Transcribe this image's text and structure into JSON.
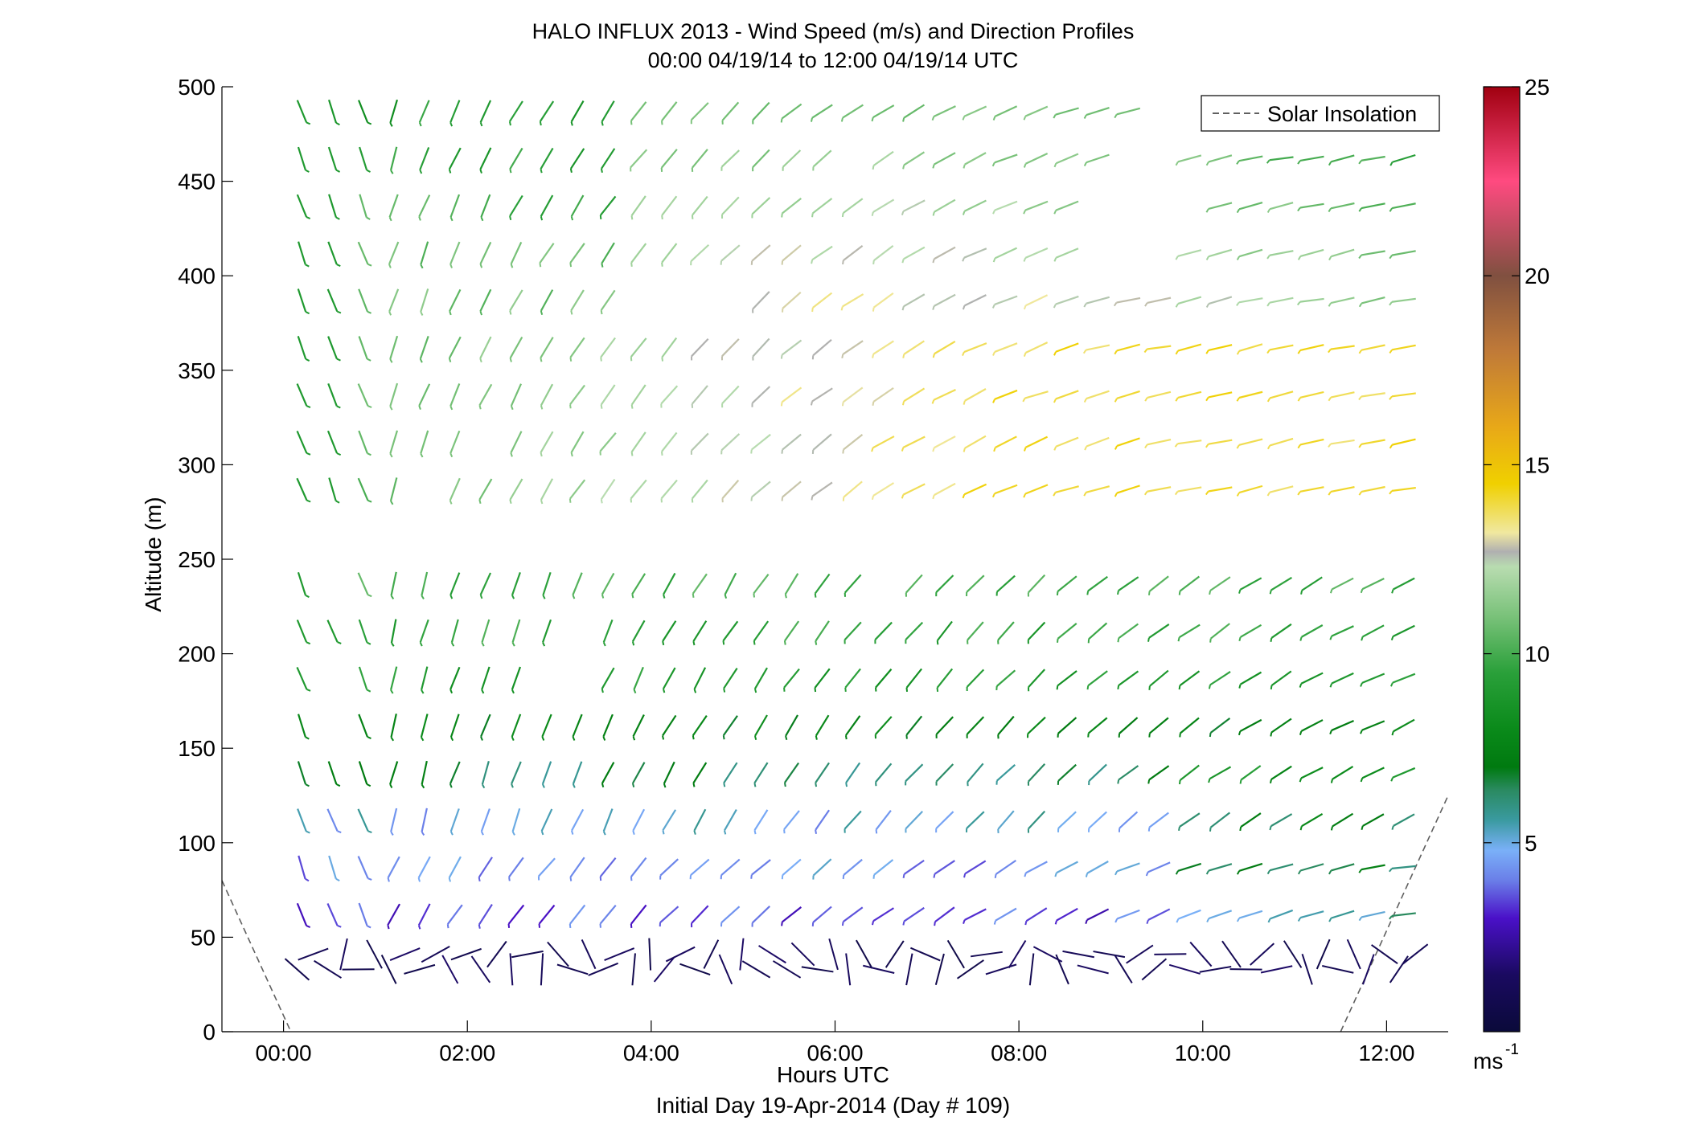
{
  "chart_data": {
    "type": "wind_barb_profile",
    "title": "HALO INFLUX 2013 - Wind Speed (m/s) and Direction Profiles",
    "subtitle": "00:00 04/19/14 to 12:00 04/19/14  UTC",
    "xlabel": "Hours UTC",
    "xlabel2": "Initial Day 19-Apr-2014 (Day # 109)",
    "ylabel": "Altitude (m)",
    "xlim_hours": [
      -0.67,
      12.67
    ],
    "ylim": [
      0,
      500
    ],
    "xticks": [
      {
        "hour": 0,
        "label": "00:00"
      },
      {
        "hour": 2,
        "label": "02:00"
      },
      {
        "hour": 4,
        "label": "04:00"
      },
      {
        "hour": 6,
        "label": "06:00"
      },
      {
        "hour": 8,
        "label": "08:00"
      },
      {
        "hour": 10,
        "label": "10:00"
      },
      {
        "hour": 12,
        "label": "12:00"
      }
    ],
    "yticks": [
      0,
      50,
      100,
      150,
      200,
      250,
      300,
      350,
      400,
      450,
      500
    ],
    "colorbar": {
      "range": [
        0,
        25
      ],
      "ticks": [
        5,
        10,
        15,
        20,
        25
      ],
      "unit_label": "ms",
      "unit_exponent": "-1",
      "stops": [
        {
          "v": 0,
          "c": "#0a0a3a"
        },
        {
          "v": 1.5,
          "c": "#1a0a60"
        },
        {
          "v": 3,
          "c": "#4a10c8"
        },
        {
          "v": 4,
          "c": "#6a7ee8"
        },
        {
          "v": 4.8,
          "c": "#7ab0f8"
        },
        {
          "v": 5.6,
          "c": "#3a9aa0"
        },
        {
          "v": 6.4,
          "c": "#2a8a60"
        },
        {
          "v": 7,
          "c": "#007a10"
        },
        {
          "v": 8,
          "c": "#0a8a1a"
        },
        {
          "v": 9.5,
          "c": "#2aa03a"
        },
        {
          "v": 11,
          "c": "#7ac27a"
        },
        {
          "v": 12.3,
          "c": "#b8dcb0"
        },
        {
          "v": 12.7,
          "c": "#b0b0b0"
        },
        {
          "v": 13.2,
          "c": "#f0e8a0"
        },
        {
          "v": 14.5,
          "c": "#f0d000"
        },
        {
          "v": 16,
          "c": "#e8a818"
        },
        {
          "v": 18,
          "c": "#c07a38"
        },
        {
          "v": 20,
          "c": "#805040"
        },
        {
          "v": 22.5,
          "c": "#ff4a80"
        },
        {
          "v": 25,
          "c": "#a00010"
        }
      ]
    },
    "altitudes_m": [
      35,
      62,
      87,
      112,
      137,
      162,
      187,
      212,
      237,
      287,
      312,
      337,
      362,
      387,
      412,
      437,
      462,
      487
    ],
    "time_step_hours": 0.333,
    "wind_field_description_levels": [
      {
        "alt": 35,
        "speed_ms": 1.0,
        "direction": "variable"
      },
      {
        "alt": 62,
        "speed_ms": 3.5,
        "direction": "SW"
      },
      {
        "alt": 87,
        "speed_ms": 4.5,
        "direction": "SSW to WSW"
      },
      {
        "alt": 112,
        "speed_ms": 5.0,
        "direction": "SSW to WSW"
      },
      {
        "alt": 137,
        "speed_ms": 6.5,
        "direction": "S to WSW"
      },
      {
        "alt": 162,
        "speed_ms": 7.5,
        "direction": "S to WSW"
      },
      {
        "alt": 187,
        "speed_ms": 9.0,
        "direction": "S to WSW"
      },
      {
        "alt": 212,
        "speed_ms": 9.5,
        "direction": "S to W"
      },
      {
        "alt": 237,
        "speed_ms": 10.0,
        "direction": "SSW to W"
      },
      {
        "alt": 287,
        "speed_ms": 13.0,
        "direction": "S to W"
      },
      {
        "alt": 312,
        "speed_ms": 13.5,
        "direction": "S to W"
      },
      {
        "alt": 337,
        "speed_ms": 13.0,
        "direction": "S to W"
      },
      {
        "alt": 362,
        "speed_ms": 12.0,
        "direction": "S to W"
      },
      {
        "alt": 387,
        "speed_ms": 11.0,
        "direction": "S to W"
      },
      {
        "alt": 412,
        "speed_ms": 10.5,
        "direction": "S to W"
      },
      {
        "alt": 437,
        "speed_ms": 10.0,
        "direction": "S to W"
      },
      {
        "alt": 462,
        "speed_ms": 9.5,
        "direction": "S to W"
      },
      {
        "alt": 487,
        "speed_ms": 9.0,
        "direction": "S to W"
      }
    ],
    "missing_data": [
      {
        "alt": 287,
        "from_hour": 1.3,
        "to_hour": 1.7
      },
      {
        "alt": 312,
        "from_hour": 2.0,
        "to_hour": 2.4
      },
      {
        "alt": 237,
        "from_hour": 0.3,
        "to_hour": 0.7
      },
      {
        "alt": 237,
        "from_hour": 6.3,
        "to_hour": 6.7
      },
      {
        "alt": 387,
        "from_hour": 3.7,
        "to_hour": 5.0
      },
      {
        "alt": 412,
        "from_hour": 8.7,
        "to_hour": 9.7
      },
      {
        "alt": 437,
        "from_hour": 8.7,
        "to_hour": 10.0
      },
      {
        "alt": 462,
        "from_hour": 6.0,
        "to_hour": 6.5
      },
      {
        "alt": 462,
        "from_hour": 9.0,
        "to_hour": 9.7
      },
      {
        "alt": 487,
        "from_hour": 9.3,
        "to_hour": 10.0
      },
      {
        "alt": 187,
        "from_hour": 0.3,
        "to_hour": 0.7
      },
      {
        "alt": 162,
        "from_hour": 0.3,
        "to_hour": 0.7
      },
      {
        "alt": 187,
        "from_hour": 2.7,
        "to_hour": 3.3
      },
      {
        "alt": 212,
        "from_hour": 3.0,
        "to_hour": 3.3
      }
    ],
    "legend": {
      "position": "top-right",
      "entries": [
        {
          "label": "Solar Insolation",
          "style": "dashed",
          "color": "#606060"
        }
      ]
    },
    "solar_insolation": {
      "left": [
        {
          "hour": -0.67,
          "alt": 80
        },
        {
          "hour": 0.08,
          "alt": 0
        }
      ],
      "right": [
        {
          "hour": 11.5,
          "alt": 0
        },
        {
          "hour": 12.67,
          "alt": 125
        }
      ]
    },
    "grid": false
  }
}
